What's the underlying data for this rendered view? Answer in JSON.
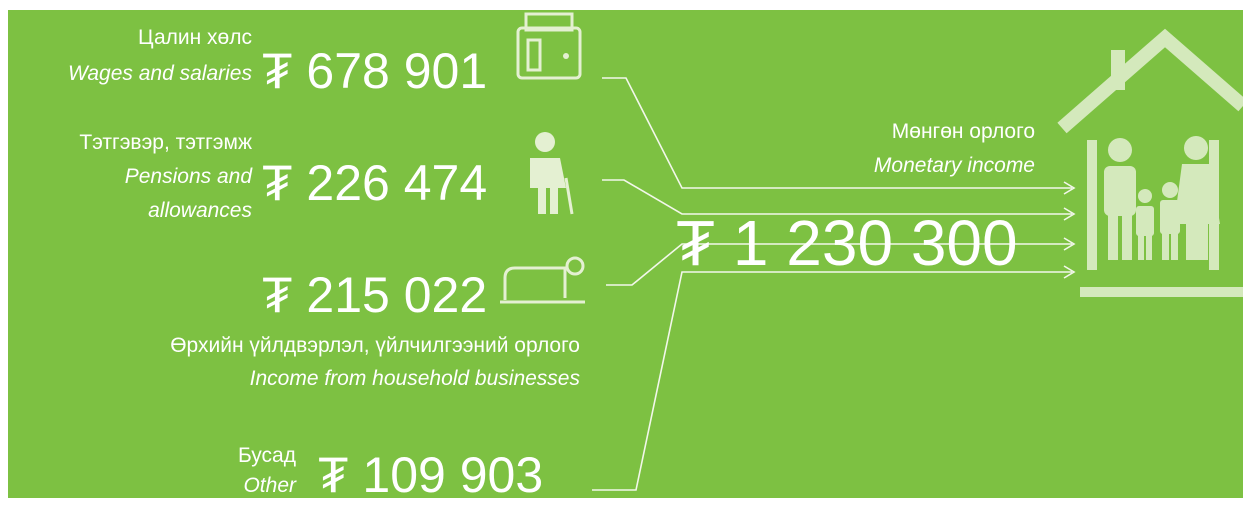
{
  "sources": [
    {
      "label_mn": "Цалин хөлс",
      "label_en": "Wages and salaries",
      "amount": "₮ 678 901"
    },
    {
      "label_mn": "Тэтгэвэр, тэтгэмж",
      "label_en_1": "Pensions and",
      "label_en_2": "allowances",
      "amount": "₮ 226 474"
    },
    {
      "amount": "₮ 215 022",
      "label_mn": "Өрхийн үйлдвэрлэл, үйлчилгээний орлого",
      "label_en": "Income from household businesses"
    },
    {
      "label_mn": "Бусад",
      "label_en": "Other",
      "amount": "₮ 109 903"
    }
  ],
  "total": {
    "label_mn": "Мөнгөн орлого",
    "label_en": "Monetary income",
    "amount": "₮ 1 230 300"
  }
}
